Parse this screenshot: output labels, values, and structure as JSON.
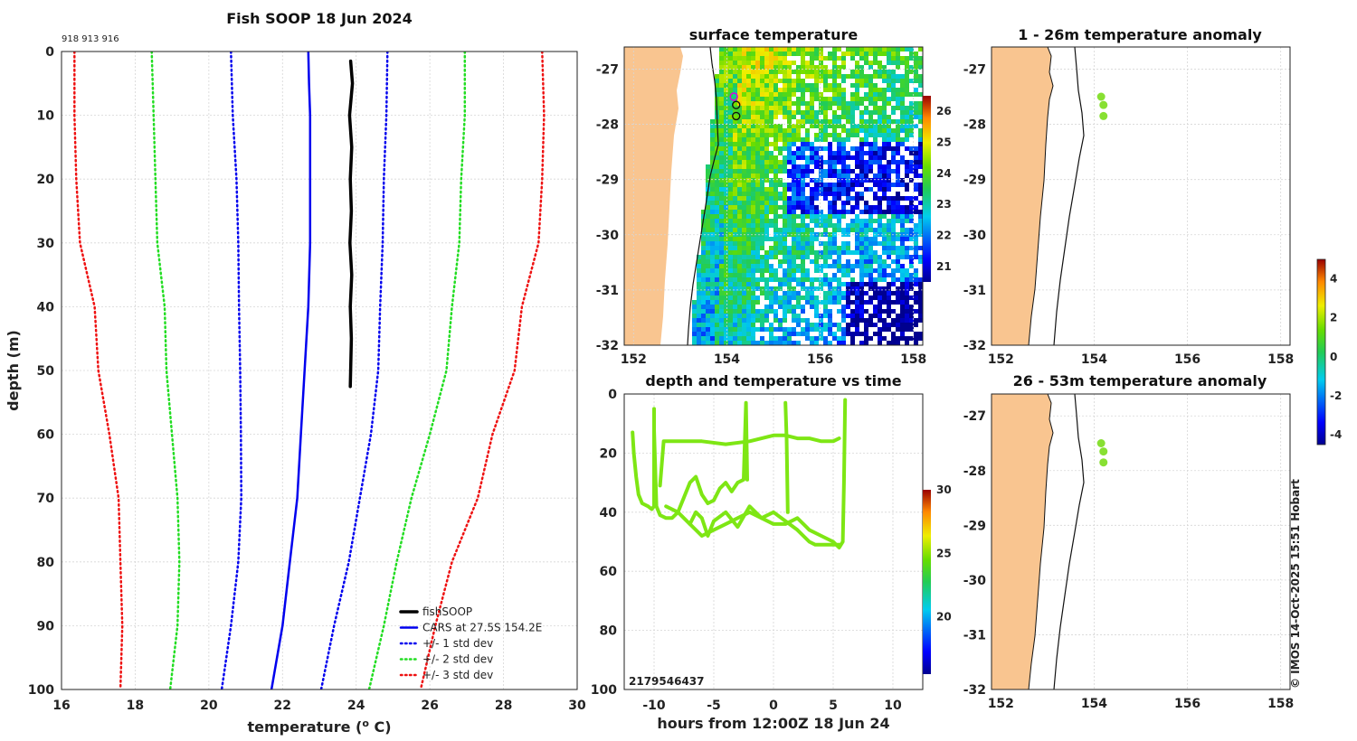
{
  "chart_data": [
    {
      "type": "line",
      "name": "profile",
      "title": "Fish SOOP 18 Jun 2024",
      "ids_text": "918 913 916",
      "xlabel": "temperature (",
      "xlabel_sup": "o",
      "xlabel_end": " C)",
      "ylabel": "depth (m)",
      "xlim": [
        16,
        30
      ],
      "ylim": [
        0,
        100
      ],
      "xticks": [
        16,
        18,
        20,
        22,
        24,
        26,
        28,
        30
      ],
      "yticks": [
        0,
        10,
        20,
        30,
        40,
        50,
        60,
        70,
        80,
        90,
        100
      ],
      "series": [
        {
          "name": "fishSOOP",
          "color": "#000000",
          "style": "solid",
          "width": 3.5,
          "points": [
            [
              23.85,
              1.5
            ],
            [
              23.9,
              5
            ],
            [
              23.82,
              10
            ],
            [
              23.88,
              15
            ],
            [
              23.84,
              20
            ],
            [
              23.87,
              25
            ],
            [
              23.83,
              30
            ],
            [
              23.88,
              35
            ],
            [
              23.84,
              40
            ],
            [
              23.87,
              45
            ],
            [
              23.85,
              50
            ],
            [
              23.84,
              52.5
            ]
          ]
        },
        {
          "name": "CARS at 27.5S 154.2E",
          "color": "#0000ee",
          "style": "solid",
          "width": 2.5,
          "points": [
            [
              22.7,
              0
            ],
            [
              22.72,
              5
            ],
            [
              22.75,
              10
            ],
            [
              22.75,
              20
            ],
            [
              22.75,
              30
            ],
            [
              22.7,
              40
            ],
            [
              22.6,
              50
            ],
            [
              22.5,
              60
            ],
            [
              22.4,
              70
            ],
            [
              22.2,
              80
            ],
            [
              22.0,
              90
            ],
            [
              21.7,
              100
            ]
          ]
        },
        {
          "name": "+/- 1 std dev",
          "color": "#0000ee",
          "style": "dot",
          "width": 2.5,
          "points": [
            [
              20.6,
              0
            ],
            [
              20.65,
              10
            ],
            [
              20.75,
              20
            ],
            [
              20.8,
              30
            ],
            [
              20.82,
              40
            ],
            [
              20.85,
              50
            ],
            [
              20.87,
              60
            ],
            [
              20.88,
              70
            ],
            [
              20.8,
              80
            ],
            [
              20.6,
              90
            ],
            [
              20.35,
              100
            ]
          ]
        },
        {
          "name": "",
          "color": "#0000ee",
          "style": "dot",
          "width": 2.5,
          "points": [
            [
              24.85,
              0
            ],
            [
              24.82,
              10
            ],
            [
              24.75,
              20
            ],
            [
              24.72,
              30
            ],
            [
              24.65,
              40
            ],
            [
              24.6,
              50
            ],
            [
              24.4,
              60
            ],
            [
              24.1,
              70
            ],
            [
              23.8,
              80
            ],
            [
              23.4,
              90
            ],
            [
              23.05,
              100
            ]
          ]
        },
        {
          "name": "+/- 2 std dev",
          "color": "#22dd22",
          "style": "dot",
          "width": 2.5,
          "points": [
            [
              18.45,
              0
            ],
            [
              18.5,
              10
            ],
            [
              18.55,
              20
            ],
            [
              18.6,
              30
            ],
            [
              18.8,
              40
            ],
            [
              18.85,
              50
            ],
            [
              19.0,
              60
            ],
            [
              19.15,
              70
            ],
            [
              19.2,
              80
            ],
            [
              19.15,
              90
            ],
            [
              18.95,
              100
            ]
          ]
        },
        {
          "name": "",
          "color": "#22dd22",
          "style": "dot",
          "width": 2.5,
          "points": [
            [
              26.95,
              0
            ],
            [
              26.95,
              10
            ],
            [
              26.85,
              20
            ],
            [
              26.8,
              30
            ],
            [
              26.6,
              40
            ],
            [
              26.45,
              50
            ],
            [
              26.0,
              60
            ],
            [
              25.5,
              70
            ],
            [
              25.1,
              80
            ],
            [
              24.75,
              90
            ],
            [
              24.35,
              100
            ]
          ]
        },
        {
          "name": "+/- 3 std dev",
          "color": "#ee1111",
          "style": "dot",
          "width": 2.5,
          "points": [
            [
              16.35,
              0
            ],
            [
              16.35,
              10
            ],
            [
              16.4,
              20
            ],
            [
              16.5,
              30
            ],
            [
              16.9,
              40
            ],
            [
              17.0,
              50
            ],
            [
              17.3,
              60
            ],
            [
              17.55,
              70
            ],
            [
              17.6,
              80
            ],
            [
              17.65,
              90
            ],
            [
              17.6,
              100
            ]
          ]
        },
        {
          "name": "",
          "color": "#ee1111",
          "style": "dot",
          "width": 2.5,
          "points": [
            [
              29.05,
              0
            ],
            [
              29.1,
              10
            ],
            [
              29.05,
              20
            ],
            [
              28.95,
              30
            ],
            [
              28.5,
              40
            ],
            [
              28.3,
              50
            ],
            [
              27.7,
              60
            ],
            [
              27.3,
              70
            ],
            [
              26.6,
              80
            ],
            [
              26.15,
              90
            ],
            [
              25.75,
              100
            ]
          ]
        }
      ],
      "legend_location": "bottom-right"
    },
    {
      "type": "heatmap",
      "name": "surface-temperature",
      "title": "surface temperature",
      "xlim": [
        151.8,
        158.2
      ],
      "ylim": [
        -32,
        -26.6
      ],
      "xticks": [
        152,
        154,
        156,
        158
      ],
      "yticks": [
        -27,
        -28,
        -29,
        -30,
        -31,
        -32
      ],
      "colorbar": {
        "range": [
          20.5,
          26.5
        ],
        "ticks": [
          21,
          22,
          23,
          24,
          25,
          26
        ]
      },
      "stations": [
        [
          154.15,
          -27.5
        ],
        [
          154.2,
          -27.65
        ],
        [
          154.2,
          -27.85
        ]
      ]
    },
    {
      "type": "scatter",
      "name": "depth-time",
      "title": "depth and temperature vs time",
      "xlabel": "hours from 12:00Z 18 Jun 24",
      "xlim": [
        -12.5,
        12.5
      ],
      "ylim": [
        0,
        100
      ],
      "xticks": [
        -10,
        -5,
        0,
        5,
        10
      ],
      "yticks": [
        0,
        20,
        40,
        60,
        80,
        100
      ],
      "ids_text": "2179546437",
      "colorbar": {
        "range": [
          15.5,
          30
        ],
        "ticks": [
          20,
          25,
          30
        ]
      },
      "tracks": [
        [
          [
            -11.8,
            13
          ],
          [
            -11.7,
            20
          ],
          [
            -11.5,
            28
          ],
          [
            -11.3,
            34
          ],
          [
            -11,
            37
          ],
          [
            -10.5,
            38
          ],
          [
            -10.2,
            39
          ],
          [
            -10,
            38
          ],
          [
            -10,
            5
          ],
          [
            -10,
            12
          ],
          [
            -9.8,
            38
          ],
          [
            -9.5,
            41
          ],
          [
            -9,
            42
          ],
          [
            -8.5,
            42
          ],
          [
            -8,
            40
          ],
          [
            -7.5,
            35
          ],
          [
            -7,
            30
          ],
          [
            -6.5,
            28
          ],
          [
            -6,
            34
          ],
          [
            -5.5,
            37
          ],
          [
            -5,
            36
          ],
          [
            -4.5,
            32
          ],
          [
            -4,
            30
          ],
          [
            -3.5,
            33
          ],
          [
            -3,
            30
          ],
          [
            -2.5,
            29
          ],
          [
            -2.3,
            3
          ],
          [
            -2.2,
            29
          ]
        ],
        [
          [
            -9.5,
            31
          ],
          [
            -9.2,
            16
          ],
          [
            -8,
            16
          ],
          [
            -6,
            16
          ],
          [
            -4,
            17
          ],
          [
            -2,
            16
          ],
          [
            0,
            14
          ],
          [
            1,
            14
          ],
          [
            2,
            15
          ],
          [
            3,
            15
          ],
          [
            4,
            16
          ],
          [
            5,
            16
          ],
          [
            5.5,
            15
          ]
        ],
        [
          [
            -9,
            38
          ],
          [
            -8,
            40
          ],
          [
            -7,
            44
          ],
          [
            -6,
            48
          ],
          [
            -5,
            46
          ],
          [
            -4,
            44
          ],
          [
            -3,
            42
          ],
          [
            -2,
            40
          ],
          [
            -1,
            42
          ],
          [
            0,
            44
          ],
          [
            1,
            44
          ],
          [
            2,
            42
          ],
          [
            3,
            46
          ],
          [
            4,
            48
          ],
          [
            5,
            50
          ],
          [
            5.5,
            52
          ],
          [
            5.8,
            50
          ],
          [
            5.9,
            30
          ],
          [
            6,
            2
          ]
        ],
        [
          [
            -7,
            44
          ],
          [
            -6.5,
            40
          ],
          [
            -6,
            42
          ],
          [
            -5.5,
            48
          ],
          [
            -5,
            43
          ],
          [
            -4,
            40
          ],
          [
            -3,
            45
          ],
          [
            -2,
            38
          ],
          [
            -1,
            42
          ],
          [
            0,
            40
          ],
          [
            1,
            43
          ],
          [
            2,
            46
          ],
          [
            2.5,
            48
          ],
          [
            3,
            50
          ],
          [
            3.5,
            51
          ],
          [
            4,
            51
          ],
          [
            4.5,
            51
          ],
          [
            5,
            51
          ],
          [
            5.5,
            51
          ]
        ],
        [
          [
            1,
            3
          ],
          [
            1.1,
            15
          ],
          [
            1.2,
            40
          ]
        ]
      ]
    },
    {
      "type": "scatter",
      "name": "anomaly-1-26",
      "title": "1 - 26m temperature anomaly",
      "xlim": [
        151.8,
        158.2
      ],
      "ylim": [
        -32,
        -26.6
      ],
      "xticks": [
        152,
        154,
        156,
        158
      ],
      "yticks": [
        -27,
        -28,
        -29,
        -30,
        -31,
        -32
      ],
      "points": [
        [
          154.15,
          -27.5
        ],
        [
          154.2,
          -27.65
        ],
        [
          154.2,
          -27.85
        ]
      ],
      "point_color": "#88e033"
    },
    {
      "type": "scatter",
      "name": "anomaly-26-53",
      "title": "26 - 53m temperature anomaly",
      "xlim": [
        151.8,
        158.2
      ],
      "ylim": [
        -32,
        -26.6
      ],
      "xticks": [
        152,
        154,
        156,
        158
      ],
      "yticks": [
        -27,
        -28,
        -29,
        -30,
        -31,
        -32
      ],
      "points": [
        [
          154.15,
          -27.5
        ],
        [
          154.2,
          -27.65
        ],
        [
          154.2,
          -27.85
        ]
      ],
      "point_color": "#88e033"
    },
    {
      "type": "colorbar",
      "name": "anomaly-colorbar",
      "range": [
        -4.5,
        5
      ],
      "ticks": [
        -4,
        -2,
        0,
        2,
        4
      ]
    }
  ],
  "credit": "© IMOS 14-Oct-2025 15:51 Hobart"
}
